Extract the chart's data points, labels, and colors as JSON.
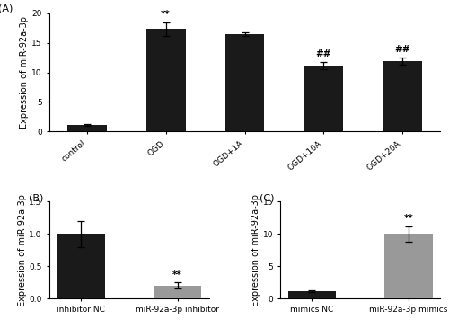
{
  "panel_A": {
    "categories": [
      "control",
      "OGD",
      "OGD+1A",
      "OGD+10A",
      "OGD+20A"
    ],
    "values": [
      1.1,
      17.3,
      16.4,
      11.1,
      11.9
    ],
    "errors": [
      0.15,
      1.1,
      0.3,
      0.6,
      0.6
    ],
    "bar_color": "#1a1a1a",
    "ylim": [
      0,
      20
    ],
    "yticks": [
      0,
      5,
      10,
      15,
      20
    ],
    "ylabel": "Expression of miR-92a-3p",
    "label": "(A)",
    "annotations": [
      {
        "bar": 1,
        "text": "**"
      },
      {
        "bar": 3,
        "text": "##"
      },
      {
        "bar": 4,
        "text": "##"
      }
    ]
  },
  "panel_B": {
    "categories": [
      "inhibitor NC",
      "miR-92a-3p inhibitor"
    ],
    "values": [
      1.0,
      0.2
    ],
    "errors": [
      0.2,
      0.05
    ],
    "bar_colors": [
      "#1a1a1a",
      "#999999"
    ],
    "ylim": [
      0,
      1.5
    ],
    "yticks": [
      0.0,
      0.5,
      1.0,
      1.5
    ],
    "ylabel": "Expression of miR-92a-3p",
    "label": "(B)",
    "annotations": [
      {
        "bar": 1,
        "text": "**"
      }
    ]
  },
  "panel_C": {
    "categories": [
      "mimics NC",
      "miR-92a-3p mimics"
    ],
    "values": [
      1.1,
      10.0
    ],
    "errors": [
      0.15,
      1.2
    ],
    "bar_colors": [
      "#1a1a1a",
      "#999999"
    ],
    "ylim": [
      0,
      15
    ],
    "yticks": [
      0,
      5,
      10,
      15
    ],
    "ylabel": "Expression of miR-92a-3p",
    "label": "(C)",
    "annotations": [
      {
        "bar": 1,
        "text": "**"
      }
    ]
  },
  "background_color": "#ffffff",
  "tick_fontsize": 6.5,
  "label_fontsize": 7,
  "annotation_fontsize": 7.5
}
